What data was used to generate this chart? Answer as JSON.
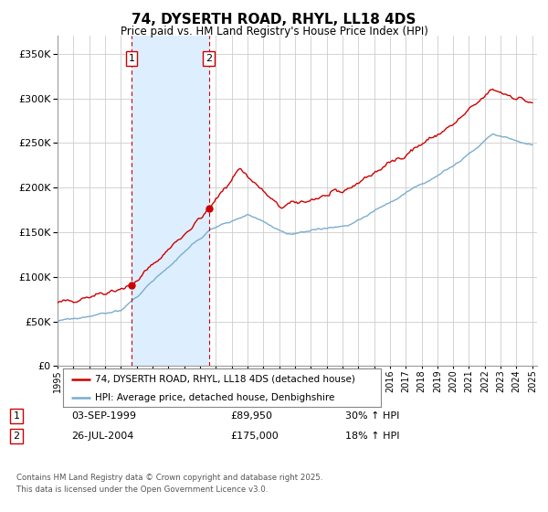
{
  "title": "74, DYSERTH ROAD, RHYL, LL18 4DS",
  "subtitle": "Price paid vs. HM Land Registry's House Price Index (HPI)",
  "legend_line1": "74, DYSERTH ROAD, RHYL, LL18 4DS (detached house)",
  "legend_line2": "HPI: Average price, detached house, Denbighshire",
  "sale1_date": "03-SEP-1999",
  "sale1_price": "£89,950",
  "sale1_hpi": "30% ↑ HPI",
  "sale2_date": "26-JUL-2004",
  "sale2_price": "£175,000",
  "sale2_hpi": "18% ↑ HPI",
  "footer": "Contains HM Land Registry data © Crown copyright and database right 2025.\nThis data is licensed under the Open Government Licence v3.0.",
  "red_color": "#cc0000",
  "blue_color": "#7aadcf",
  "shade_color": "#ddeeff",
  "vline_color": "#cc0000",
  "grid_color": "#cccccc",
  "bg_color": "#ffffff",
  "ylim": [
    0,
    370000
  ],
  "yticks": [
    0,
    50000,
    100000,
    150000,
    200000,
    250000,
    300000,
    350000
  ],
  "sale1_year": 1999.67,
  "sale2_year": 2004.56
}
